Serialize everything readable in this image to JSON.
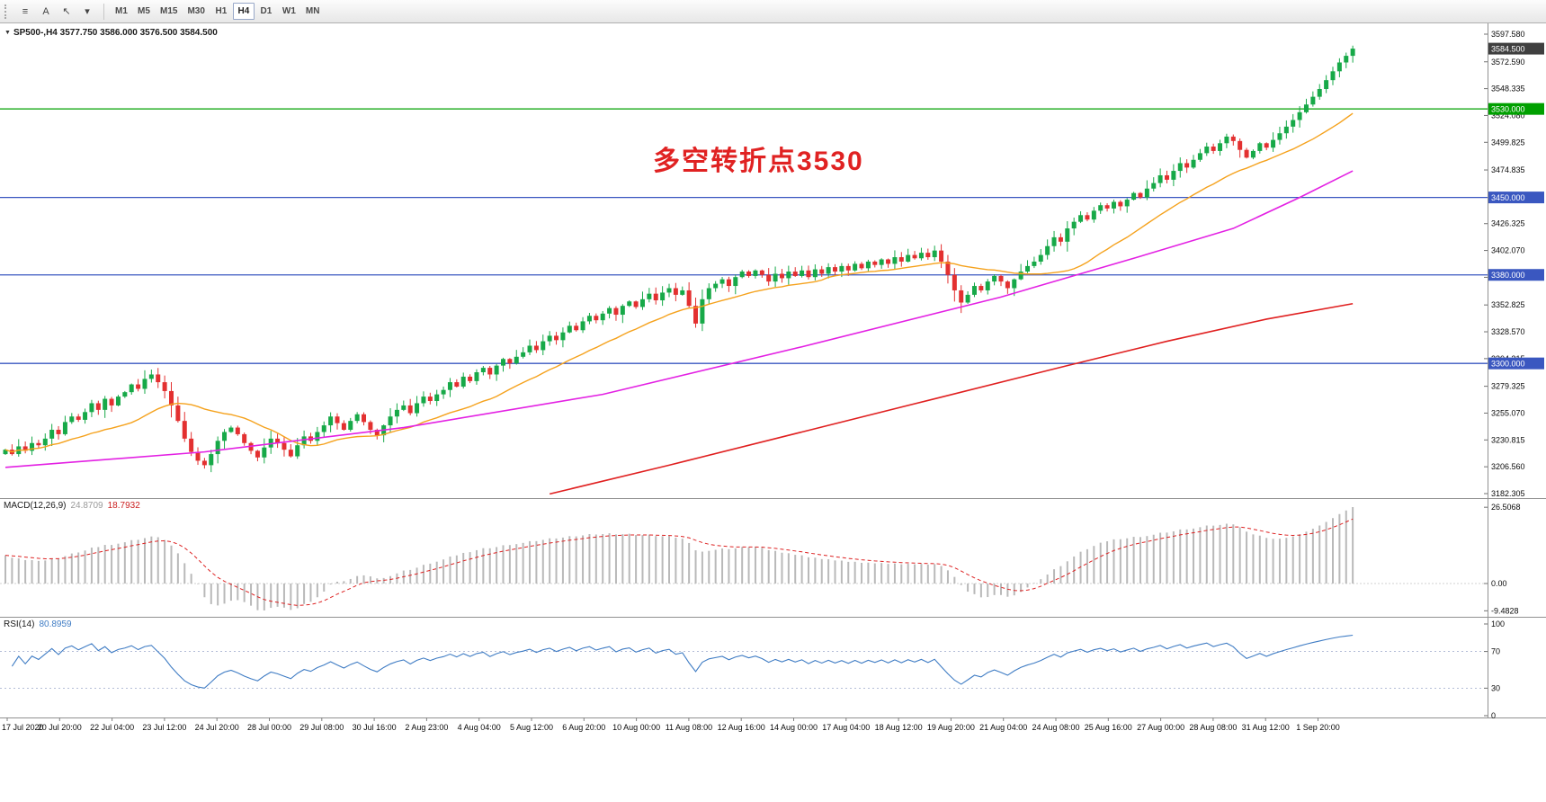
{
  "toolbar": {
    "tools": [
      {
        "glyph": "≡",
        "name": "menu"
      },
      {
        "glyph": "A",
        "name": "text"
      },
      {
        "glyph": "↖",
        "name": "cursor"
      },
      {
        "glyph": "▾",
        "name": "dropdown"
      }
    ],
    "timeframes": [
      {
        "label": "M1",
        "active": false
      },
      {
        "label": "M5",
        "active": false
      },
      {
        "label": "M15",
        "active": false
      },
      {
        "label": "M30",
        "active": false
      },
      {
        "label": "H1",
        "active": false
      },
      {
        "label": "H4",
        "active": true
      },
      {
        "label": "D1",
        "active": false
      },
      {
        "label": "W1",
        "active": false
      },
      {
        "label": "MN",
        "active": false
      }
    ]
  },
  "chart": {
    "symbol_line": {
      "symbol": "SP500-,H4",
      "ohlc": "3577.750 3586.000 3576.500 3584.500"
    },
    "annotation": {
      "text": "多空转折点3530",
      "color": "#e02222"
    },
    "hlines": [
      {
        "price": 3530,
        "color": "#00a000"
      },
      {
        "price": 3450,
        "color": "#3a57c0"
      },
      {
        "price": 3380,
        "color": "#3a57c0"
      },
      {
        "price": 3300,
        "color": "#3a57c0"
      }
    ],
    "axis": {
      "price_labels": [
        "3597.580",
        "3572.590",
        "3548.335",
        "3524.080",
        "3499.825",
        "3474.835",
        "3426.325",
        "3402.070",
        "3377.815",
        "3352.825",
        "3328.570",
        "3304.315",
        "3279.325",
        "3255.070",
        "3230.815",
        "3206.560",
        "3182.305"
      ],
      "boxed_labels": [
        {
          "text": "3584.500",
          "bg": "#3f3f3f"
        },
        {
          "text": "3530.000",
          "bg": "#00a000"
        },
        {
          "text": "3450.000",
          "bg": "#3a57c0"
        },
        {
          "text": "3380.000",
          "bg": "#3a57c0"
        },
        {
          "text": "3300.000",
          "bg": "#3a57c0"
        }
      ]
    },
    "time_axis": {
      "labels": [
        "17 Jul 2020",
        "20 Jul 20:00",
        "22 Jul 04:00",
        "23 Jul 12:00",
        "24 Jul 20:00",
        "28 Jul 00:00",
        "29 Jul 08:00",
        "30 Jul 16:00",
        "2 Aug 23:00",
        "4 Aug 04:00",
        "5 Aug 12:00",
        "6 Aug 20:00",
        "10 Aug 00:00",
        "11 Aug 08:00",
        "12 Aug 16:00",
        "14 Aug 00:00",
        "17 Aug 04:00",
        "18 Aug 12:00",
        "19 Aug 20:00",
        "21 Aug 04:00",
        "24 Aug 08:00",
        "25 Aug 16:00",
        "27 Aug 00:00",
        "28 Aug 08:00",
        "31 Aug 12:00",
        "1 Sep 20:00"
      ]
    }
  },
  "macd": {
    "title": "MACD(12,26,9)",
    "value": "24.8709",
    "signal_value": "18.7932",
    "axis": [
      "26.5068",
      "0.00",
      "-9.4828"
    ]
  },
  "rsi": {
    "title": "RSI(14)",
    "value": "80.8959",
    "axis": [
      "100",
      "70",
      "30",
      "0"
    ],
    "levels": [
      70,
      30
    ]
  },
  "chart_data": {
    "type": "candlestick",
    "symbol": "SP500-",
    "timeframe": "H4",
    "current_ohlc": {
      "open": 3577.75,
      "high": 3586.0,
      "low": 3576.5,
      "close": 3584.5
    },
    "price_range": {
      "top": 3597.58,
      "bottom": 3182.305
    },
    "up_color": "#17a948",
    "down_color": "#e33030",
    "closes": [
      3222,
      3218,
      3225,
      3221,
      3228,
      3226,
      3232,
      3240,
      3236,
      3247,
      3252,
      3249,
      3256,
      3264,
      3258,
      3268,
      3262,
      3270,
      3274,
      3281,
      3277,
      3286,
      3290,
      3283,
      3275,
      3262,
      3248,
      3232,
      3220,
      3212,
      3208,
      3218,
      3230,
      3238,
      3242,
      3236,
      3228,
      3221,
      3215,
      3224,
      3232,
      3228,
      3222,
      3216,
      3226,
      3234,
      3230,
      3238,
      3244,
      3252,
      3246,
      3240,
      3248,
      3254,
      3247,
      3240,
      3235,
      3244,
      3252,
      3258,
      3262,
      3255,
      3264,
      3270,
      3266,
      3272,
      3276,
      3283,
      3279,
      3288,
      3284,
      3292,
      3296,
      3290,
      3298,
      3304,
      3300,
      3306,
      3310,
      3316,
      3312,
      3320,
      3325,
      3321,
      3328,
      3334,
      3330,
      3338,
      3343,
      3339,
      3345,
      3350,
      3344,
      3352,
      3356,
      3351,
      3358,
      3363,
      3357,
      3364,
      3368,
      3362,
      3366,
      3352,
      3336,
      3358,
      3368,
      3372,
      3376,
      3370,
      3378,
      3383,
      3379,
      3384,
      3380,
      3374,
      3381,
      3377,
      3383,
      3379,
      3384,
      3378,
      3385,
      3381,
      3387,
      3383,
      3388,
      3384,
      3390,
      3386,
      3392,
      3389,
      3394,
      3390,
      3396,
      3392,
      3398,
      3395,
      3400,
      3396,
      3402,
      3392,
      3380,
      3366,
      3355,
      3362,
      3370,
      3366,
      3374,
      3379,
      3374,
      3368,
      3376,
      3383,
      3388,
      3392,
      3398,
      3406,
      3414,
      3410,
      3422,
      3428,
      3434,
      3430,
      3438,
      3443,
      3440,
      3446,
      3442,
      3448,
      3454,
      3450,
      3458,
      3463,
      3470,
      3466,
      3474,
      3481,
      3477,
      3484,
      3490,
      3496,
      3492,
      3499,
      3505,
      3501,
      3493,
      3486,
      3492,
      3499,
      3495,
      3502,
      3508,
      3514,
      3520,
      3527,
      3534,
      3541,
      3548,
      3556,
      3564,
      3572,
      3578,
      3584.5
    ],
    "ma": [
      {
        "name": "fast",
        "type": "sma",
        "period": 20,
        "color": "#f5a21d"
      },
      {
        "name": "mid",
        "color": "#e321e3",
        "waypoints": [
          [
            0,
            3206
          ],
          [
            30,
            3220
          ],
          [
            60,
            3242
          ],
          [
            90,
            3272
          ],
          [
            120,
            3315
          ],
          [
            150,
            3360
          ],
          [
            170,
            3395
          ],
          [
            185,
            3422
          ],
          [
            195,
            3450
          ],
          [
            203,
            3474
          ]
        ]
      },
      {
        "name": "slow",
        "color": "#e02020",
        "waypoints": [
          [
            82,
            3182
          ],
          [
            100,
            3208
          ],
          [
            120,
            3238
          ],
          [
            140,
            3268
          ],
          [
            160,
            3298
          ],
          [
            175,
            3320
          ],
          [
            190,
            3340
          ],
          [
            203,
            3354
          ]
        ]
      }
    ],
    "indicators": {
      "macd": {
        "fast": 12,
        "slow": 26,
        "signal": 9,
        "current": 24.8709,
        "signal_current": 18.7932
      },
      "rsi": {
        "period": 14,
        "current": 80.8959
      }
    }
  }
}
